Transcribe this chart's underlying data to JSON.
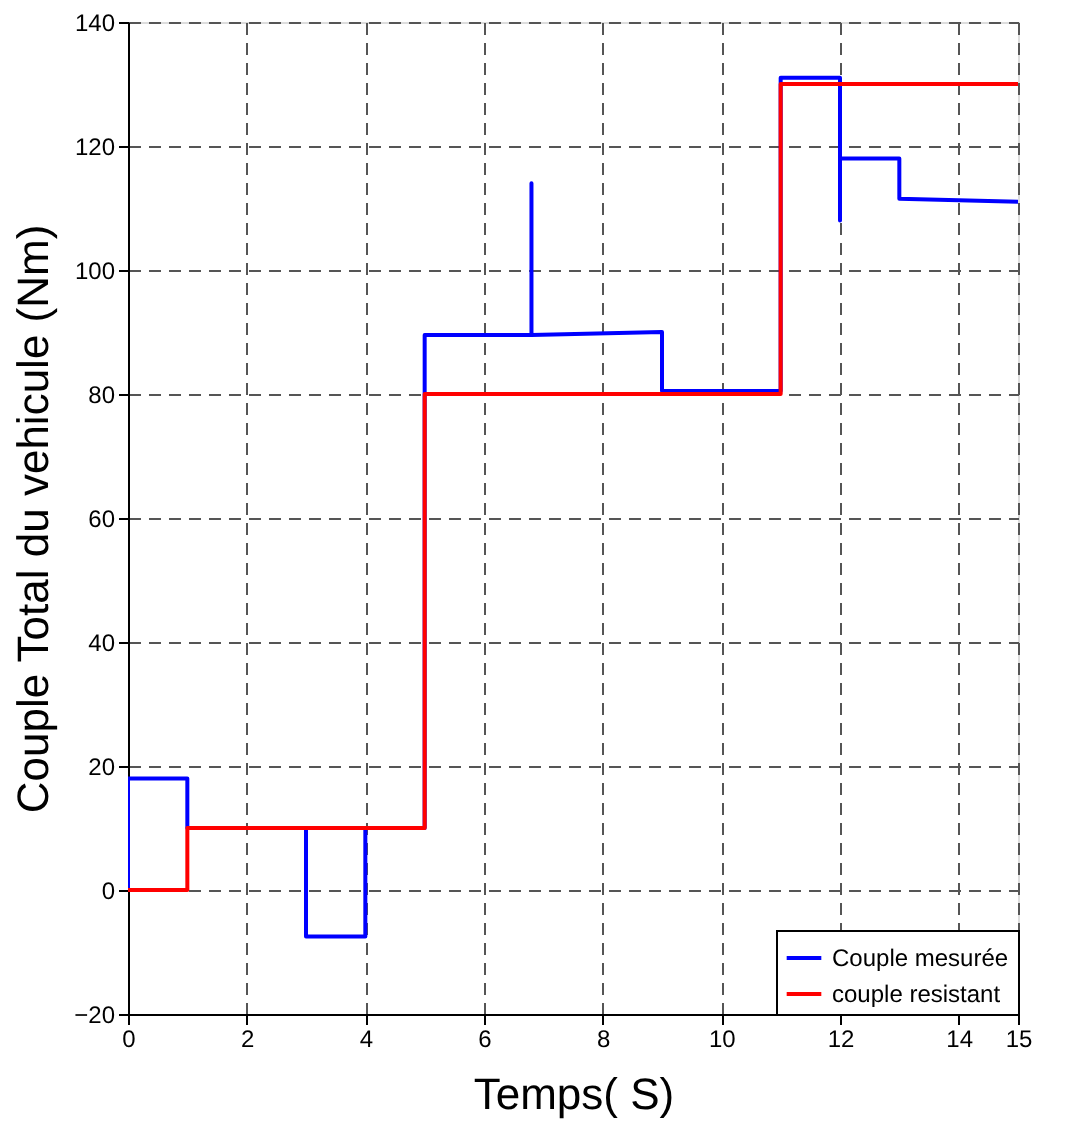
{
  "chart_data": {
    "type": "line",
    "xlabel": "Temps( S)",
    "ylabel": "Couple Total du vehicule  (Nm)",
    "xlim": [
      0,
      15
    ],
    "ylim": [
      -20,
      140
    ],
    "xticks": [
      0,
      2,
      4,
      6,
      8,
      10,
      12,
      14,
      15
    ],
    "yticks": [
      -20,
      0,
      20,
      40,
      60,
      80,
      100,
      120,
      140
    ],
    "grid": true,
    "legend": "bottom right",
    "line_style": "solid",
    "series": [
      {
        "name": "Couple mesurée",
        "color": "#0000ff",
        "x": [
          0,
          0,
          1,
          1,
          3,
          3,
          4,
          4,
          5,
          5,
          6.8,
          6.8,
          6.8,
          9,
          9,
          11,
          11,
          12,
          12,
          12,
          13,
          13,
          15
        ],
        "values": [
          0,
          18,
          18,
          10,
          10,
          -7.5,
          -7.5,
          10,
          10,
          89.5,
          89.5,
          114,
          89.5,
          90,
          80.5,
          80.5,
          131,
          131,
          108,
          118,
          118,
          111.5,
          111
        ]
      },
      {
        "name": "couple resistant",
        "color": "#ff0000",
        "x": [
          0,
          1,
          1,
          5,
          5,
          11,
          11,
          15
        ],
        "values": [
          0,
          0,
          10,
          10,
          80,
          80,
          130,
          130
        ]
      }
    ]
  }
}
